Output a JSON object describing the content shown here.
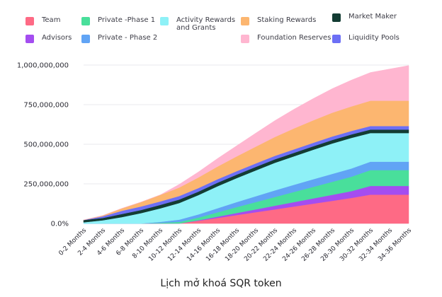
{
  "caption": "Lịch mở khoá SQR token",
  "chart_data": {
    "type": "area",
    "stacked": true,
    "x": [
      "0-2 Months",
      "2-4 Months",
      "4-6 Months",
      "6-8 Months",
      "8-10 Months",
      "10-12 Months",
      "12-14 Months",
      "14-16 Months",
      "16-18 Months",
      "18-20 Months",
      "20-22 Months",
      "22-24 Months",
      "24-26 Months",
      "26-28 Months",
      "28-30 Months",
      "30-32 Months",
      "32-34 Months",
      "34-36 Months"
    ],
    "y_ticks": [
      "0.0%",
      "250,000,000",
      "500,000,000",
      "750,000,000",
      "1,000,000,000"
    ],
    "ylim": [
      0,
      1000000000
    ],
    "legend_position": "top",
    "series": [
      {
        "name": "Team",
        "color": "#fe6a85",
        "values": [
          0,
          0,
          0,
          0,
          0,
          0,
          17000000,
          35000000,
          53000000,
          71000000,
          89000000,
          107000000,
          125000000,
          143000000,
          161000000,
          182000000,
          182000000,
          182000000
        ]
      },
      {
        "name": "Advisors",
        "color": "#a44df0",
        "values": [
          0,
          0,
          0,
          0,
          0,
          0,
          3000000,
          8000000,
          13000000,
          18000000,
          23000000,
          28000000,
          33000000,
          38000000,
          43000000,
          55000000,
          55000000,
          55000000
        ]
      },
      {
        "name": "Private -Phase 1",
        "color": "#49df9b",
        "values": [
          0,
          0,
          0,
          0,
          4000000,
          10000000,
          17000000,
          27000000,
          37000000,
          46000000,
          55000000,
          64000000,
          73000000,
          82000000,
          91000000,
          100000000,
          100000000,
          100000000
        ]
      },
      {
        "name": "Private - Phase 2",
        "color": "#61a4f5",
        "values": [
          0,
          0,
          0,
          0,
          6000000,
          14000000,
          20000000,
          26000000,
          32000000,
          37000000,
          42000000,
          45000000,
          48000000,
          50000000,
          52000000,
          53000000,
          53000000,
          53000000
        ]
      },
      {
        "name": "Activity Rewards and Grants",
        "color": "#8ef1f7",
        "values": [
          7000000,
          20000000,
          40000000,
          65000000,
          85000000,
          105000000,
          122000000,
          139000000,
          151000000,
          163000000,
          174000000,
          180000000,
          186000000,
          192000000,
          193000000,
          181000000,
          181000000,
          181000000
        ]
      },
      {
        "name": "Market Maker",
        "color": "#133c33",
        "values": [
          15000000,
          15000000,
          20000000,
          20000000,
          22000000,
          22000000,
          22000000,
          22000000,
          22000000,
          22000000,
          22000000,
          22000000,
          22000000,
          22000000,
          22000000,
          22000000,
          22000000,
          22000000
        ]
      },
      {
        "name": "Liquidity Pools",
        "color": "#6c6ff5",
        "values": [
          0,
          10000000,
          20000000,
          22000000,
          22000000,
          22000000,
          22000000,
          22000000,
          22000000,
          22000000,
          22000000,
          22000000,
          22000000,
          22000000,
          22000000,
          22000000,
          22000000,
          22000000
        ]
      },
      {
        "name": "Staking Rewards",
        "color": "#fcb670",
        "values": [
          0,
          5000000,
          15000000,
          28000000,
          41000000,
          54000000,
          67000000,
          80000000,
          93000000,
          106000000,
          119000000,
          132000000,
          142000000,
          150000000,
          155000000,
          160000000,
          160000000,
          160000000
        ]
      },
      {
        "name": "Foundation Reserves",
        "color": "#ffb6d0",
        "values": [
          0,
          0,
          0,
          0,
          0,
          20000000,
          35000000,
          51000000,
          67000000,
          85000000,
          103000000,
          121000000,
          137000000,
          152000000,
          166000000,
          178000000,
          200000000,
          222000000
        ]
      }
    ]
  },
  "legend": [
    {
      "label": "Team",
      "color": "#fe6a85"
    },
    {
      "label": "Private -Phase 1",
      "color": "#49df9b"
    },
    {
      "label": "Activity Rewards\nand Grants",
      "color": "#8ef1f7"
    },
    {
      "label": "Staking Rewards",
      "color": "#fcb670"
    },
    {
      "label": "Market Maker",
      "color": "#133c33"
    },
    {
      "label": "Advisors",
      "color": "#a44df0"
    },
    {
      "label": "Private - Phase 2",
      "color": "#61a4f5"
    },
    {
      "label": "Foundation Reserves",
      "color": "#ffb6d0"
    },
    {
      "label": "Liquidity Pools",
      "color": "#6c6ff5"
    }
  ]
}
